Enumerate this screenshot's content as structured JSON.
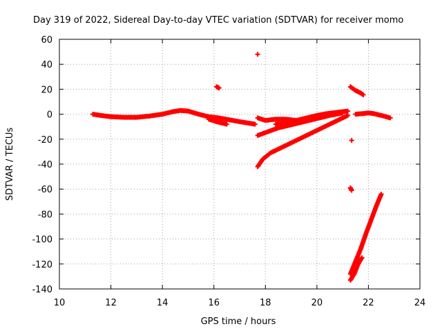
{
  "chart_data": {
    "type": "scatter",
    "title": "Day 319 of 2022, Sidereal Day-to-day VTEC variation (SDTVAR) for receiver momo",
    "xlabel": "GPS time / hours",
    "ylabel": "SDTVAR / TECUs",
    "xlim": [
      10,
      24
    ],
    "ylim": [
      -140,
      60
    ],
    "xticks": [
      "10",
      "12",
      "14",
      "16",
      "18",
      "20",
      "22",
      "24"
    ],
    "yticks": [
      "60",
      "40",
      "20",
      "0",
      "-20",
      "-40",
      "-60",
      "-80",
      "-100",
      "-120",
      "-140"
    ],
    "grid": true,
    "marker_color": "#ff0000",
    "marker": "plus",
    "series": [
      {
        "segments": [
          [
            [
              11.3,
              0
            ],
            [
              11.6,
              -1
            ],
            [
              12.0,
              -2
            ],
            [
              12.5,
              -2.5
            ],
            [
              13.0,
              -2.5
            ],
            [
              13.5,
              -1.5
            ],
            [
              14.0,
              0
            ],
            [
              14.4,
              2
            ],
            [
              14.7,
              3
            ],
            [
              15.0,
              2.5
            ],
            [
              15.4,
              0
            ],
            [
              15.8,
              -2
            ],
            [
              16.2,
              -3
            ],
            [
              16.6,
              -4.5
            ],
            [
              17.0,
              -6
            ],
            [
              17.3,
              -7
            ],
            [
              17.6,
              -8
            ]
          ],
          [
            [
              15.8,
              -4
            ],
            [
              16.1,
              -6
            ],
            [
              16.5,
              -8
            ]
          ],
          [
            [
              16.1,
              22
            ],
            [
              16.2,
              21
            ]
          ],
          [
            [
              17.7,
              48
            ]
          ],
          [
            [
              17.7,
              -3
            ],
            [
              18.0,
              -5
            ],
            [
              18.4,
              -4
            ],
            [
              18.8,
              -4
            ],
            [
              19.2,
              -5
            ],
            [
              19.6,
              -3
            ],
            [
              20.0,
              -1
            ],
            [
              20.4,
              0.5
            ],
            [
              20.8,
              1.5
            ],
            [
              21.2,
              2.5
            ]
          ],
          [
            [
              17.7,
              -17
            ],
            [
              18.1,
              -14
            ],
            [
              18.5,
              -11
            ],
            [
              18.9,
              -9
            ],
            [
              19.3,
              -7
            ],
            [
              19.7,
              -5
            ],
            [
              20.1,
              -3
            ],
            [
              20.5,
              -1
            ],
            [
              21.0,
              1
            ]
          ],
          [
            [
              17.7,
              -42
            ],
            [
              17.9,
              -36
            ],
            [
              18.2,
              -31
            ],
            [
              18.5,
              -28
            ],
            [
              18.8,
              -25
            ],
            [
              19.2,
              -21
            ],
            [
              19.6,
              -17
            ],
            [
              20.0,
              -13
            ],
            [
              20.4,
              -9
            ],
            [
              20.8,
              -5
            ],
            [
              21.2,
              -1
            ]
          ],
          [
            [
              18.4,
              -8
            ],
            [
              18.8,
              -7
            ],
            [
              19.2,
              -7
            ],
            [
              19.6,
              -5
            ]
          ],
          [
            [
              21.3,
              22
            ],
            [
              21.5,
              19
            ],
            [
              21.7,
              17
            ],
            [
              21.8,
              15.5
            ]
          ],
          [
            [
              21.35,
              -21
            ]
          ],
          [
            [
              21.3,
              -59
            ],
            [
              21.35,
              -61
            ]
          ],
          [
            [
              21.5,
              0
            ],
            [
              21.8,
              0.5
            ],
            [
              22.0,
              1
            ],
            [
              22.2,
              0.5
            ],
            [
              22.4,
              -0.5
            ],
            [
              22.6,
              -1.5
            ],
            [
              22.85,
              -3
            ]
          ],
          [
            [
              21.3,
              -133
            ],
            [
              21.45,
              -128
            ],
            [
              21.6,
              -120
            ],
            [
              21.75,
              -115
            ]
          ],
          [
            [
              21.3,
              -128
            ],
            [
              21.5,
              -118
            ],
            [
              21.7,
              -108
            ],
            [
              21.9,
              -96
            ],
            [
              22.1,
              -85
            ],
            [
              22.3,
              -74
            ],
            [
              22.5,
              -64
            ]
          ]
        ]
      }
    ]
  }
}
